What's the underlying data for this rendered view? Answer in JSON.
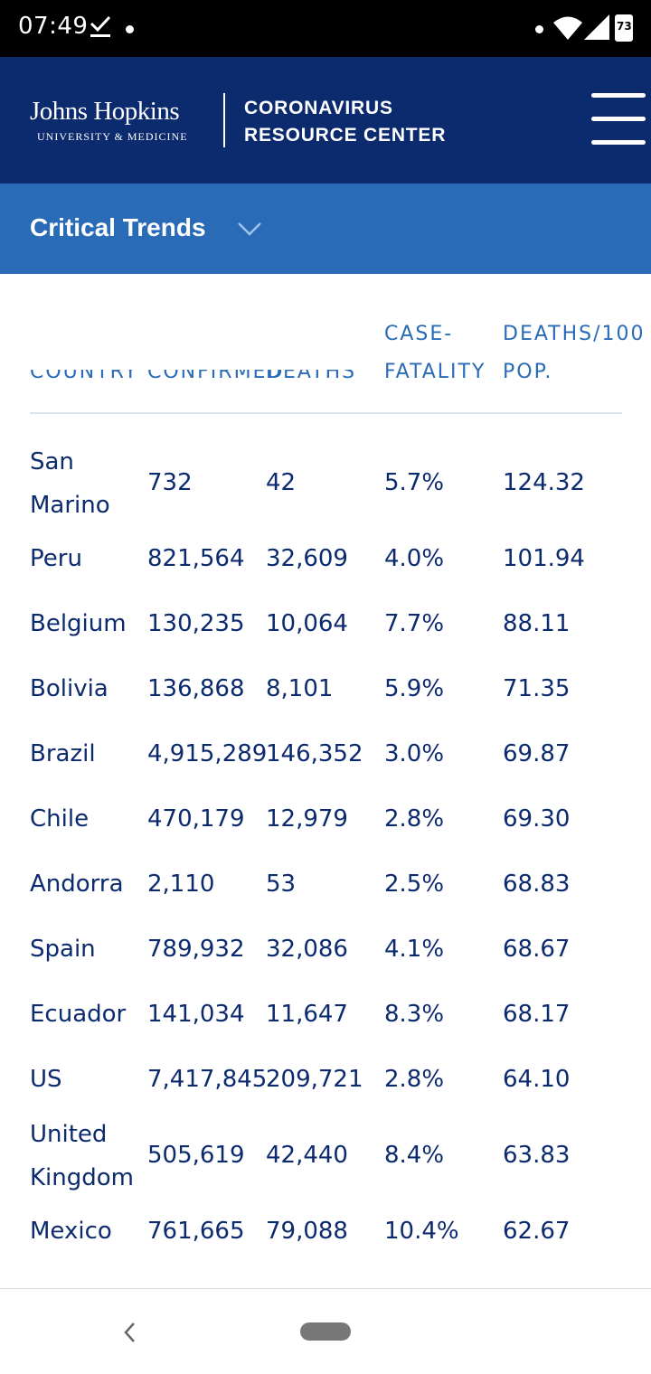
{
  "status_bar": {
    "time": "07:49",
    "battery": "73",
    "icons": [
      "download-done-icon",
      "notification-dot-icon",
      "wifi-icon",
      "signal-icon",
      "battery-icon"
    ]
  },
  "header": {
    "logo_main": "Johns Hopkins",
    "logo_sub": "UNIVERSITY & MEDICINE",
    "title": "CORONAVIRUS\nRESOURCE CENTER",
    "background": "#0c2a6e",
    "menu_icon": "hamburger-icon"
  },
  "trends": {
    "title": "Critical Trends",
    "chevron_icon": "chevron-down-icon",
    "background": "#2a6bb7"
  },
  "table": {
    "headers": {
      "country": "COUNTRY",
      "confirmed": "CONFIRMED",
      "deaths": "DEATHS",
      "cfr_line1": "CASE-",
      "cfr_line2": "FATALITY",
      "dpop_line1": "DEATHS/100",
      "dpop_line2": "POP."
    },
    "header_color": "#2a6bb7",
    "text_color": "#0c2a6e",
    "rows": [
      {
        "country": "San Marino",
        "confirmed": "732",
        "deaths": "42",
        "cfr": "5.7%",
        "dpop": "124.32"
      },
      {
        "country": "Peru",
        "confirmed": "821,564",
        "deaths": "32,609",
        "cfr": "4.0%",
        "dpop": "101.94"
      },
      {
        "country": "Belgium",
        "confirmed": "130,235",
        "deaths": "10,064",
        "cfr": "7.7%",
        "dpop": "88.11"
      },
      {
        "country": "Bolivia",
        "confirmed": "136,868",
        "deaths": "8,101",
        "cfr": "5.9%",
        "dpop": "71.35"
      },
      {
        "country": "Brazil",
        "confirmed": "4,915,289",
        "deaths": "146,352",
        "cfr": "3.0%",
        "dpop": "69.87"
      },
      {
        "country": "Chile",
        "confirmed": "470,179",
        "deaths": "12,979",
        "cfr": "2.8%",
        "dpop": "69.30"
      },
      {
        "country": "Andorra",
        "confirmed": "2,110",
        "deaths": "53",
        "cfr": "2.5%",
        "dpop": "68.83"
      },
      {
        "country": "Spain",
        "confirmed": "789,932",
        "deaths": "32,086",
        "cfr": "4.1%",
        "dpop": "68.67"
      },
      {
        "country": "Ecuador",
        "confirmed": "141,034",
        "deaths": "11,647",
        "cfr": "8.3%",
        "dpop": "68.17"
      },
      {
        "country": "US",
        "confirmed": "7,417,845",
        "deaths": "209,721",
        "cfr": "2.8%",
        "dpop": "64.10"
      },
      {
        "country": "United Kingdom",
        "confirmed": "505,619",
        "deaths": "42,440",
        "cfr": "8.4%",
        "dpop": "63.83"
      },
      {
        "country": "Mexico",
        "confirmed": "761,665",
        "deaths": "79,088",
        "cfr": "10.4%",
        "dpop": "62.67"
      }
    ]
  },
  "nav_bar": {
    "back_icon": "back-chevron-icon",
    "home_icon": "home-pill-icon"
  }
}
